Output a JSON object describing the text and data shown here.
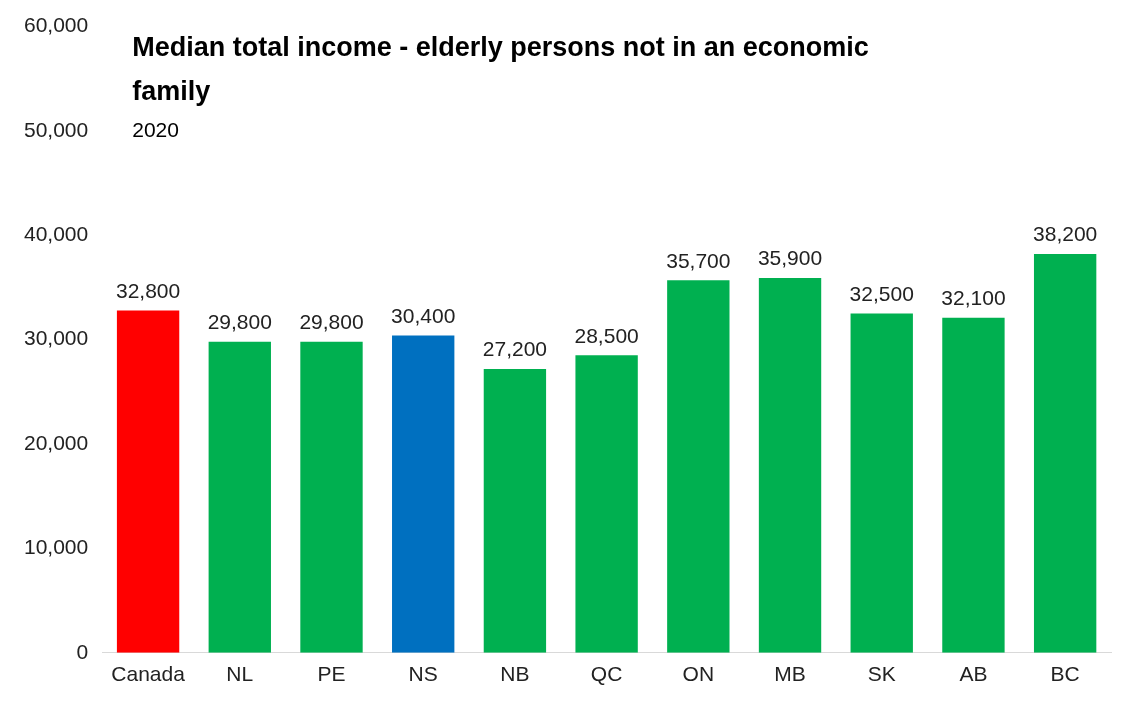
{
  "chart_data": {
    "type": "bar",
    "title": "Median total income - elderly persons not in an economic family",
    "subtitle": "2020",
    "categories": [
      "Canada",
      "NL",
      "PE",
      "NS",
      "NB",
      "QC",
      "ON",
      "MB",
      "SK",
      "AB",
      "BC"
    ],
    "values": [
      32800,
      29800,
      29800,
      30400,
      27200,
      28500,
      35700,
      35900,
      32500,
      32100,
      38200
    ],
    "colors": [
      "#ff0000",
      "#00b050",
      "#00b050",
      "#0070c0",
      "#00b050",
      "#00b050",
      "#00b050",
      "#00b050",
      "#00b050",
      "#00b050",
      "#00b050"
    ],
    "value_labels": [
      "32,800",
      "29,800",
      "29,800",
      "30,400",
      "27,200",
      "28,500",
      "35,700",
      "35,900",
      "32,500",
      "32,100",
      "38,200"
    ],
    "ylim": [
      0,
      60000
    ],
    "yticks": [
      {
        "value": 0,
        "label": "0"
      },
      {
        "value": 10000,
        "label": "10,000"
      },
      {
        "value": 20000,
        "label": "20,000"
      },
      {
        "value": 30000,
        "label": "30,000"
      },
      {
        "value": 40000,
        "label": "40,000"
      },
      {
        "value": 50000,
        "label": "50,000"
      },
      {
        "value": 60000,
        "label": "60,000"
      }
    ],
    "grid": false,
    "legend": false
  }
}
